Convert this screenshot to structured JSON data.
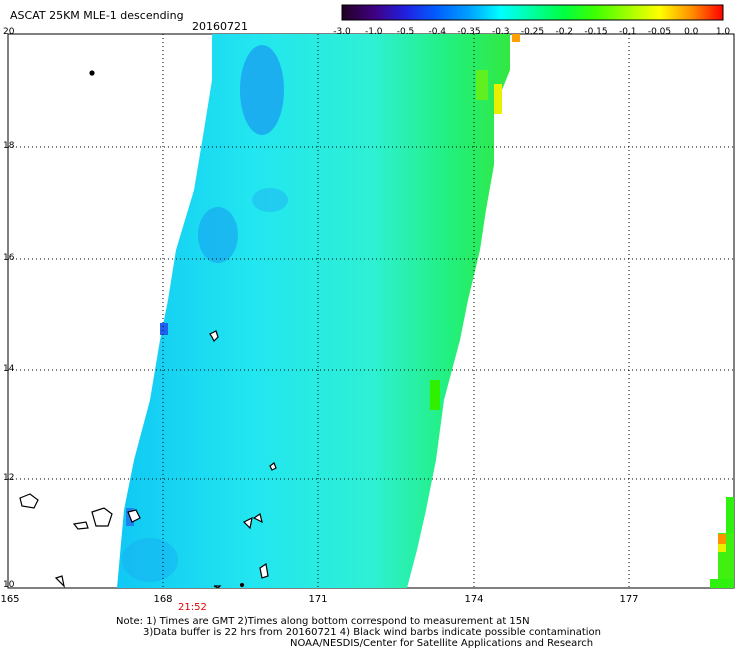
{
  "title": "ASCAT 25KM MLE-1 descending",
  "date": "20160721",
  "colorbar": {
    "labels": [
      "-3.0",
      "-1.0",
      "-0.5",
      "-0.4",
      "-0.35",
      "-0.3",
      "-0.25",
      "-0.2",
      "-0.15",
      "-0.1",
      "-0.05",
      "0.0",
      "1.0"
    ],
    "colors": [
      "#200020",
      "#400080",
      "#2020e0",
      "#0060ff",
      "#00a0ff",
      "#00ffff",
      "#00ffa0",
      "#00ff40",
      "#40ff00",
      "#a0ff00",
      "#ffff00",
      "#ff9000",
      "#ff0000"
    ]
  },
  "y_axis": {
    "labels": [
      "20",
      "18",
      "16",
      "14",
      "12",
      "10"
    ]
  },
  "x_axis": {
    "labels": [
      "165",
      "168",
      "171",
      "174",
      "177"
    ]
  },
  "time_label": "21:52",
  "notes": {
    "line1": "Note: 1) Times are GMT 2)Times along bottom correspond to measurement at 15N",
    "line2": "3)Data buffer is 22 hrs from 20160721 4) Black wind barbs indicate possible contamination",
    "line3": "NOAA/NESDIS/Center for Satellite Applications and Research"
  },
  "map": {
    "lon_range": [
      165,
      179.5
    ],
    "lat_range": [
      10,
      20
    ],
    "swath_color_range": "-0.35 to -0.1",
    "grid": "dotted"
  }
}
